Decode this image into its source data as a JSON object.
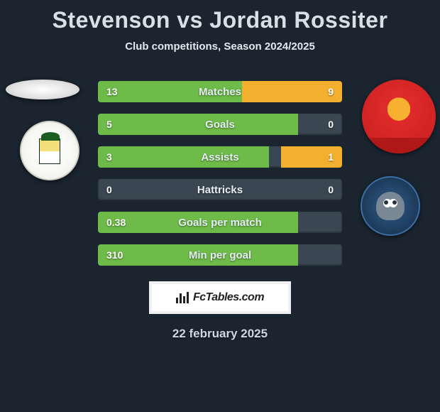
{
  "title": "Stevenson vs Jordan Rossiter",
  "subtitle": "Club competitions, Season 2024/2025",
  "colors": {
    "left_bar": "#6fbb49",
    "right_bar": "#f3b02f",
    "track": "#3a4651"
  },
  "stats": [
    {
      "label": "Matches",
      "left_value": "13",
      "right_value": "9",
      "left_pct": 59,
      "right_pct": 41
    },
    {
      "label": "Goals",
      "left_value": "5",
      "right_value": "0",
      "left_pct": 82,
      "right_pct": 0
    },
    {
      "label": "Assists",
      "left_value": "3",
      "right_value": "1",
      "left_pct": 70,
      "right_pct": 25
    },
    {
      "label": "Hattricks",
      "left_value": "0",
      "right_value": "0",
      "left_pct": 0,
      "right_pct": 0
    },
    {
      "label": "Goals per match",
      "left_value": "0.38",
      "right_value": "",
      "left_pct": 82,
      "right_pct": 0
    },
    {
      "label": "Min per goal",
      "left_value": "310",
      "right_value": "",
      "left_pct": 82,
      "right_pct": 0
    }
  ],
  "attribution": "FcTables.com",
  "date": "22 february 2025"
}
